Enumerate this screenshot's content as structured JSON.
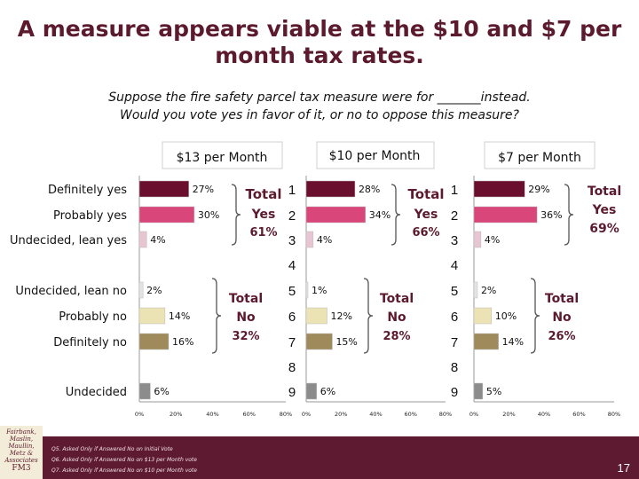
{
  "title": {
    "line1": "A measure appears viable at the $10 and $7 per",
    "line2": "month tax rates."
  },
  "subtitle": {
    "line1": "Suppose the fire safety parcel tax measure were for _______instead.",
    "line2": "Would you vote yes in favor of it, or no to oppose this measure?"
  },
  "categories": [
    "Definitely yes",
    "Probably yes",
    "Undecided, lean yes",
    "Undecided, lean no",
    "Probably no",
    "Definitely no",
    "Undecided"
  ],
  "row_numbers": [
    "1",
    "2",
    "3",
    "4",
    "5",
    "6",
    "7",
    "8",
    "9"
  ],
  "x_ticks": [
    "0%",
    "20%",
    "40%",
    "60%",
    "80%"
  ],
  "chart_data": [
    {
      "type": "bar",
      "title": "$13 per Month",
      "categories": [
        "Definitely yes",
        "Probably yes",
        "Undecided, lean yes",
        "Undecided, lean no",
        "Probably no",
        "Definitely no",
        "Undecided"
      ],
      "values": [
        27,
        30,
        4,
        2,
        14,
        16,
        6
      ],
      "labels": [
        "27%",
        "30%",
        "4%",
        "2%",
        "14%",
        "16%",
        "6%"
      ],
      "xlim": [
        0,
        80
      ],
      "total_yes": {
        "label": "Total",
        "sub": "Yes",
        "value": "61%"
      },
      "total_no": {
        "label": "Total",
        "sub": "No",
        "value": "32%"
      }
    },
    {
      "type": "bar",
      "title": "$10 per Month",
      "categories": [
        "Definitely yes",
        "Probably yes",
        "Undecided, lean yes",
        "Undecided, lean no",
        "Probably no",
        "Definitely no",
        "Undecided"
      ],
      "values": [
        28,
        34,
        4,
        1,
        12,
        15,
        6
      ],
      "labels": [
        "28%",
        "34%",
        "4%",
        "1%",
        "12%",
        "15%",
        "6%"
      ],
      "xlim": [
        0,
        80
      ],
      "total_yes": {
        "label": "Total",
        "sub": "Yes",
        "value": "66%"
      },
      "total_no": {
        "label": "Total",
        "sub": "No",
        "value": "28%"
      }
    },
    {
      "type": "bar",
      "title": "$7 per Month",
      "categories": [
        "Definitely yes",
        "Probably yes",
        "Undecided, lean yes",
        "Undecided, lean no",
        "Probably no",
        "Definitely no",
        "Undecided"
      ],
      "values": [
        29,
        36,
        4,
        2,
        10,
        14,
        5
      ],
      "labels": [
        "29%",
        "36%",
        "4%",
        "2%",
        "10%",
        "14%",
        "5%"
      ],
      "xlim": [
        0,
        80
      ],
      "total_yes": {
        "label": "Total",
        "sub": "Yes",
        "value": "69%"
      },
      "total_no": {
        "label": "Total",
        "sub": "No",
        "value": "26%"
      }
    }
  ],
  "colors": {
    "definitely_yes": "#6b0f2e",
    "probably_yes": "#d9467a",
    "lean_yes": "#e8c5d2",
    "lean_no": "#e3e3e3",
    "probably_no": "#ece3b5",
    "definitely_no": "#9e8a5a",
    "undecided": "#8c8c8c",
    "accent": "#5c1a2e"
  },
  "footer": {
    "notes": [
      "Q5.  Asked Only if Answered No on Initial Vote",
      "Q6.  Asked Only if Answered No on $13 per Month vote",
      "Q7.  Asked Only if Answered No on $10 per Month vote"
    ],
    "page_number": "17",
    "logo_lines": [
      "Fairbank,",
      "Maslin,",
      "Maullin,",
      "Metz &",
      "Associates",
      "FM3"
    ]
  }
}
